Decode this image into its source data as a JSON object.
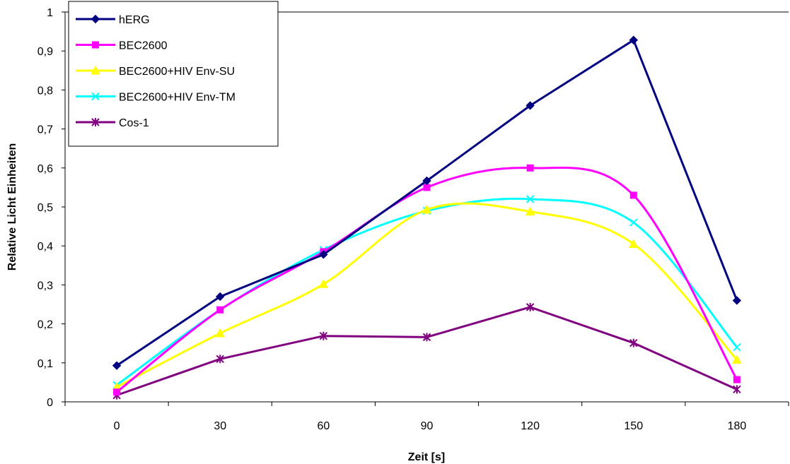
{
  "chart_data": {
    "type": "line",
    "title": "",
    "xlabel": "Zeit [s]",
    "ylabel": "Relative Licht Einheiten",
    "categories": [
      "0",
      "30",
      "60",
      "90",
      "120",
      "150",
      "180"
    ],
    "ylim": [
      0,
      1
    ],
    "yticks": [
      "0",
      "0,1",
      "0,2",
      "0,3",
      "0,4",
      "0,5",
      "0,6",
      "0,7",
      "0,8",
      "0,9",
      "1"
    ],
    "ytick_values": [
      0,
      0.1,
      0.2,
      0.3,
      0.4,
      0.5,
      0.6,
      0.7,
      0.8,
      0.9,
      1
    ],
    "grid": "horizontal line at 1 only",
    "legend_position": "top-left",
    "series": [
      {
        "name": "hERG",
        "color": "#000080",
        "marker": "diamond",
        "smooth": false,
        "values": [
          0.093,
          0.27,
          0.378,
          0.567,
          0.76,
          0.928,
          0.26
        ]
      },
      {
        "name": "BEC2600",
        "color": "#ff00ff",
        "marker": "square",
        "smooth": true,
        "values": [
          0.025,
          0.236,
          0.385,
          0.55,
          0.6,
          0.53,
          0.057
        ]
      },
      {
        "name": "BEC2600+HIV Env-SU",
        "color": "#ffff00",
        "marker": "triangle",
        "smooth": true,
        "values": [
          0.038,
          0.176,
          0.302,
          0.493,
          0.488,
          0.405,
          0.108
        ]
      },
      {
        "name": "BEC2600+HIV Env-TM",
        "color": "#00ffff",
        "marker": "x",
        "smooth": true,
        "values": [
          0.043,
          0.236,
          0.39,
          0.49,
          0.52,
          0.46,
          0.14
        ]
      },
      {
        "name": "Cos-1",
        "color": "#800080",
        "marker": "asterisk",
        "smooth": false,
        "values": [
          0.017,
          0.11,
          0.169,
          0.166,
          0.243,
          0.151,
          0.032
        ]
      }
    ]
  }
}
